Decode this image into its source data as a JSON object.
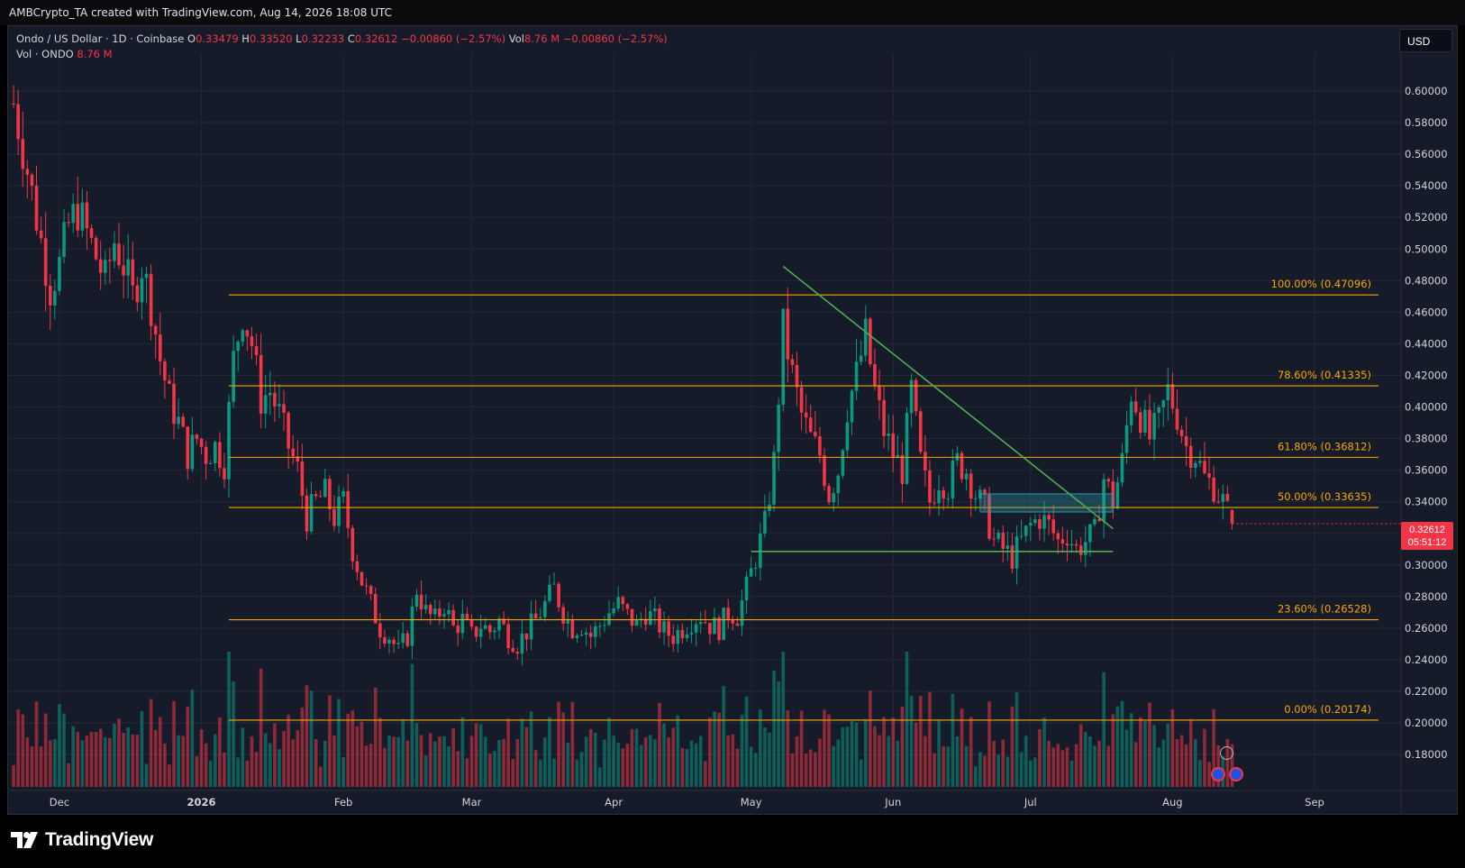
{
  "header": {
    "created_text": "AMBCrypto_TA created with TradingView.com, Aug 14, 2026 18:08 UTC"
  },
  "legend": {
    "symbol": "Ondo / US Dollar · 1D · Coinbase",
    "o_label": "O",
    "o_value": "0.33479",
    "h_label": "H",
    "h_value": "0.33520",
    "l_label": "L",
    "l_value": "0.32233",
    "c_label": "C",
    "c_value": "0.32612",
    "change": "−0.00860 (−2.57%)",
    "vol_label": "Vol",
    "vol_value": "8.76 M",
    "vol_change": "−0.00860 (−2.57%)",
    "vol2_label": "Vol · ONDO",
    "vol2_value": "8.76 M"
  },
  "currency_button": "USD",
  "price_tag": {
    "price": "0.32612",
    "countdown": "05:51:12"
  },
  "brand": {
    "name": "TradingView"
  },
  "colors": {
    "up": "#089981",
    "down": "#f23645",
    "fib": "#f7a600",
    "trend": "#4caf50",
    "zone": "#2c97a8",
    "bg": "#161b29"
  },
  "chart_data": {
    "type": "candlestick",
    "symbol": "ONDO/USD",
    "timeframe": "1D",
    "x_tick_labels": [
      "Dec",
      "2026",
      "Feb",
      "Mar",
      "Apr",
      "May",
      "Jun",
      "Jul",
      "Aug",
      "Sep"
    ],
    "x_tick_dates": [
      "2025-12-01",
      "2026-01-01",
      "2026-02-01",
      "2026-03-01",
      "2026-04-01",
      "2026-05-01",
      "2026-06-01",
      "2026-07-01",
      "2026-08-01",
      "2026-09-01"
    ],
    "y_tick_labels": [
      "0.18000",
      "0.20000",
      "0.22000",
      "0.24000",
      "0.26000",
      "0.28000",
      "0.30000",
      "0.32000",
      "0.34000",
      "0.36000",
      "0.38000",
      "0.40000",
      "0.42000",
      "0.44000",
      "0.46000",
      "0.48000",
      "0.50000",
      "0.52000",
      "0.54000",
      "0.56000",
      "0.58000",
      "0.60000"
    ],
    "ylim": [
      0.17,
      0.61
    ],
    "fib_levels": [
      {
        "label": "100.00% (0.47096)",
        "value": 0.47096
      },
      {
        "label": "78.60% (0.41335)",
        "value": 0.41335
      },
      {
        "label": "61.80% (0.36812)",
        "value": 0.36812
      },
      {
        "label": "50.00% (0.33635)",
        "value": 0.33635
      },
      {
        "label": "23.60% (0.26528)",
        "value": 0.26528
      },
      {
        "label": "0.00% (0.20174)",
        "value": 0.20174
      }
    ],
    "trendline": {
      "from": {
        "date": "2026-05-08",
        "price": 0.489
      },
      "to": {
        "date": "2026-07-19",
        "price": 0.323
      }
    },
    "support_line": {
      "from": {
        "date": "2026-05-01",
        "price": 0.3085
      },
      "to": {
        "date": "2026-07-19",
        "price": 0.3085
      }
    },
    "zone": {
      "from_date": "2026-06-20",
      "to_date": "2026-07-19",
      "low": 0.3335,
      "high": 0.345
    },
    "closes": [
      [
        "2025-11-21",
        0.592
      ],
      [
        "2025-11-23",
        0.565
      ],
      [
        "2025-11-25",
        0.535
      ],
      [
        "2025-11-27",
        0.505
      ],
      [
        "2025-11-29",
        0.475
      ],
      [
        "2025-12-01",
        0.49
      ],
      [
        "2025-12-03",
        0.515
      ],
      [
        "2025-12-05",
        0.525
      ],
      [
        "2025-12-07",
        0.51
      ],
      [
        "2025-12-09",
        0.495
      ],
      [
        "2025-12-11",
        0.48
      ],
      [
        "2025-12-13",
        0.505
      ],
      [
        "2025-12-15",
        0.49
      ],
      [
        "2025-12-17",
        0.47
      ],
      [
        "2025-12-19",
        0.49
      ],
      [
        "2025-12-21",
        0.465
      ],
      [
        "2025-12-23",
        0.43
      ],
      [
        "2025-12-25",
        0.405
      ],
      [
        "2025-12-27",
        0.39
      ],
      [
        "2025-12-29",
        0.37
      ],
      [
        "2025-12-31",
        0.38
      ],
      [
        "2026-01-02",
        0.37
      ],
      [
        "2026-01-04",
        0.375
      ],
      [
        "2026-01-06",
        0.365
      ],
      [
        "2026-01-08",
        0.43
      ],
      [
        "2026-01-10",
        0.46
      ],
      [
        "2026-01-12",
        0.44
      ],
      [
        "2026-01-14",
        0.405
      ],
      [
        "2026-01-16",
        0.41
      ],
      [
        "2026-01-18",
        0.395
      ],
      [
        "2026-01-20",
        0.375
      ],
      [
        "2026-01-22",
        0.36
      ],
      [
        "2026-01-24",
        0.33
      ],
      [
        "2026-01-26",
        0.34
      ],
      [
        "2026-01-28",
        0.345
      ],
      [
        "2026-01-30",
        0.33
      ],
      [
        "2026-02-01",
        0.34
      ],
      [
        "2026-02-03",
        0.31
      ],
      [
        "2026-02-05",
        0.29
      ],
      [
        "2026-02-07",
        0.275
      ],
      [
        "2026-02-09",
        0.26
      ],
      [
        "2026-02-11",
        0.255
      ],
      [
        "2026-02-13",
        0.245
      ],
      [
        "2026-02-15",
        0.255
      ],
      [
        "2026-02-17",
        0.285
      ],
      [
        "2026-02-19",
        0.27
      ],
      [
        "2026-02-21",
        0.265
      ],
      [
        "2026-02-23",
        0.275
      ],
      [
        "2026-02-25",
        0.26
      ],
      [
        "2026-02-27",
        0.265
      ],
      [
        "2026-03-01",
        0.255
      ],
      [
        "2026-03-03",
        0.262
      ],
      [
        "2026-03-05",
        0.258
      ],
      [
        "2026-03-07",
        0.265
      ],
      [
        "2026-03-09",
        0.255
      ],
      [
        "2026-03-11",
        0.25
      ],
      [
        "2026-03-13",
        0.258
      ],
      [
        "2026-03-15",
        0.265
      ],
      [
        "2026-03-17",
        0.275
      ],
      [
        "2026-03-19",
        0.285
      ],
      [
        "2026-03-21",
        0.27
      ],
      [
        "2026-03-23",
        0.26
      ],
      [
        "2026-03-25",
        0.262
      ],
      [
        "2026-03-27",
        0.255
      ],
      [
        "2026-03-29",
        0.262
      ],
      [
        "2026-03-31",
        0.27
      ],
      [
        "2026-04-02",
        0.275
      ],
      [
        "2026-04-04",
        0.268
      ],
      [
        "2026-04-06",
        0.262
      ],
      [
        "2026-04-08",
        0.27
      ],
      [
        "2026-04-10",
        0.265
      ],
      [
        "2026-04-12",
        0.258
      ],
      [
        "2026-04-14",
        0.255
      ],
      [
        "2026-04-16",
        0.26
      ],
      [
        "2026-04-18",
        0.265
      ],
      [
        "2026-04-20",
        0.268
      ],
      [
        "2026-04-22",
        0.262
      ],
      [
        "2026-04-24",
        0.26
      ],
      [
        "2026-04-26",
        0.27
      ],
      [
        "2026-04-28",
        0.268
      ],
      [
        "2026-04-30",
        0.285
      ],
      [
        "2026-05-02",
        0.305
      ],
      [
        "2026-05-04",
        0.325
      ],
      [
        "2026-05-06",
        0.365
      ],
      [
        "2026-05-08",
        0.45
      ],
      [
        "2026-05-10",
        0.42
      ],
      [
        "2026-05-12",
        0.395
      ],
      [
        "2026-05-14",
        0.38
      ],
      [
        "2026-05-16",
        0.37
      ],
      [
        "2026-05-18",
        0.345
      ],
      [
        "2026-05-20",
        0.36
      ],
      [
        "2026-05-22",
        0.4
      ],
      [
        "2026-05-24",
        0.42
      ],
      [
        "2026-05-26",
        0.445
      ],
      [
        "2026-05-28",
        0.41
      ],
      [
        "2026-05-30",
        0.385
      ],
      [
        "2026-06-01",
        0.37
      ],
      [
        "2026-06-03",
        0.36
      ],
      [
        "2026-06-05",
        0.41
      ],
      [
        "2026-06-07",
        0.365
      ],
      [
        "2026-06-09",
        0.34
      ],
      [
        "2026-06-11",
        0.355
      ],
      [
        "2026-06-13",
        0.35
      ],
      [
        "2026-06-15",
        0.365
      ],
      [
        "2026-06-17",
        0.36
      ],
      [
        "2026-06-19",
        0.345
      ],
      [
        "2026-06-21",
        0.335
      ],
      [
        "2026-06-23",
        0.315
      ],
      [
        "2026-06-25",
        0.31
      ],
      [
        "2026-06-27",
        0.305
      ],
      [
        "2026-06-29",
        0.315
      ],
      [
        "2026-07-01",
        0.325
      ],
      [
        "2026-07-03",
        0.33
      ],
      [
        "2026-07-05",
        0.325
      ],
      [
        "2026-07-07",
        0.315
      ],
      [
        "2026-07-09",
        0.32
      ],
      [
        "2026-07-11",
        0.31
      ],
      [
        "2026-07-13",
        0.315
      ],
      [
        "2026-07-15",
        0.32
      ],
      [
        "2026-07-17",
        0.355
      ],
      [
        "2026-07-19",
        0.34
      ],
      [
        "2026-07-21",
        0.365
      ],
      [
        "2026-07-23",
        0.41
      ],
      [
        "2026-07-25",
        0.395
      ],
      [
        "2026-07-27",
        0.38
      ],
      [
        "2026-07-29",
        0.39
      ],
      [
        "2026-07-31",
        0.41
      ],
      [
        "2026-08-02",
        0.395
      ],
      [
        "2026-08-04",
        0.375
      ],
      [
        "2026-08-06",
        0.37
      ],
      [
        "2026-08-08",
        0.355
      ],
      [
        "2026-08-10",
        0.35
      ],
      [
        "2026-08-12",
        0.34
      ],
      [
        "2026-08-14",
        0.32612
      ]
    ]
  }
}
